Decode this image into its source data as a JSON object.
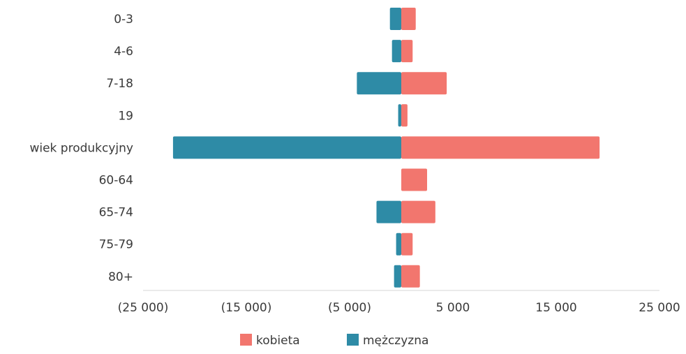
{
  "chart_data": {
    "type": "bar",
    "orientation": "horizontal",
    "stacked_diverging": true,
    "categories": [
      "0-3",
      "4-6",
      "7-18",
      "19",
      "wiek produkcyjny",
      "60-64",
      "65-74",
      "75-79",
      "80+"
    ],
    "series": [
      {
        "name": "kobieta",
        "color": "#f2766e",
        "values": [
          1400,
          1100,
          4400,
          600,
          19200,
          2500,
          3300,
          1100,
          1800
        ]
      },
      {
        "name": "mężczyzna",
        "color": "#2e8ba6",
        "values": [
          -1100,
          -900,
          -4300,
          -300,
          -22100,
          0,
          -2400,
          -500,
          -700
        ]
      }
    ],
    "xlim": [
      -25000,
      25000
    ],
    "x_ticks": [
      -25000,
      -15000,
      -5000,
      5000,
      15000,
      25000
    ],
    "x_tick_labels": [
      "(25 000)",
      "(15 000)",
      "(5 000)",
      "5 000",
      "15 000",
      "25 000"
    ],
    "grid": false,
    "legend": {
      "position": "bottom",
      "entries": [
        "kobieta",
        "mężczyzna"
      ]
    }
  }
}
